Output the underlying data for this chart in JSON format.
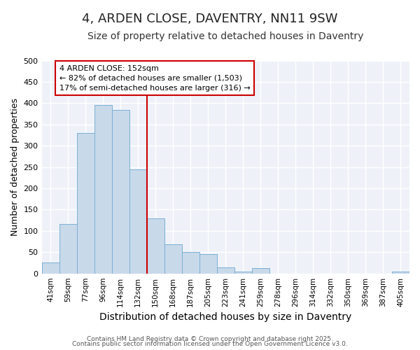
{
  "title": "4, ARDEN CLOSE, DAVENTRY, NN11 9SW",
  "subtitle": "Size of property relative to detached houses in Daventry",
  "xlabel": "Distribution of detached houses by size in Daventry",
  "ylabel": "Number of detached properties",
  "footer1": "Contains HM Land Registry data © Crown copyright and database right 2025.",
  "footer2": "Contains public sector information licensed under the Open Government Licence v3.0.",
  "categories": [
    "41sqm",
    "59sqm",
    "77sqm",
    "96sqm",
    "114sqm",
    "132sqm",
    "150sqm",
    "168sqm",
    "187sqm",
    "205sqm",
    "223sqm",
    "241sqm",
    "259sqm",
    "278sqm",
    "296sqm",
    "314sqm",
    "332sqm",
    "350sqm",
    "369sqm",
    "387sqm",
    "405sqm"
  ],
  "values": [
    25,
    116,
    330,
    395,
    385,
    245,
    130,
    68,
    50,
    45,
    15,
    5,
    12,
    0,
    0,
    0,
    0,
    0,
    0,
    0,
    5
  ],
  "bar_color": "#c8d9ea",
  "bar_edge_color": "#7bafd4",
  "bg_color": "#eef2f8",
  "grid_color": "#ffffff",
  "annotation_text": "4 ARDEN CLOSE: 152sqm\n← 82% of detached houses are smaller (1,503)\n17% of semi-detached houses are larger (316) →",
  "vline_color": "#cc0000",
  "vline_pos": 6,
  "annotation_box_edgecolor": "#cc0000",
  "ylim": [
    0,
    500
  ],
  "yticks": [
    0,
    50,
    100,
    150,
    200,
    250,
    300,
    350,
    400,
    450,
    500
  ],
  "title_fontsize": 13,
  "subtitle_fontsize": 10,
  "ylabel_fontsize": 9,
  "xlabel_fontsize": 10
}
